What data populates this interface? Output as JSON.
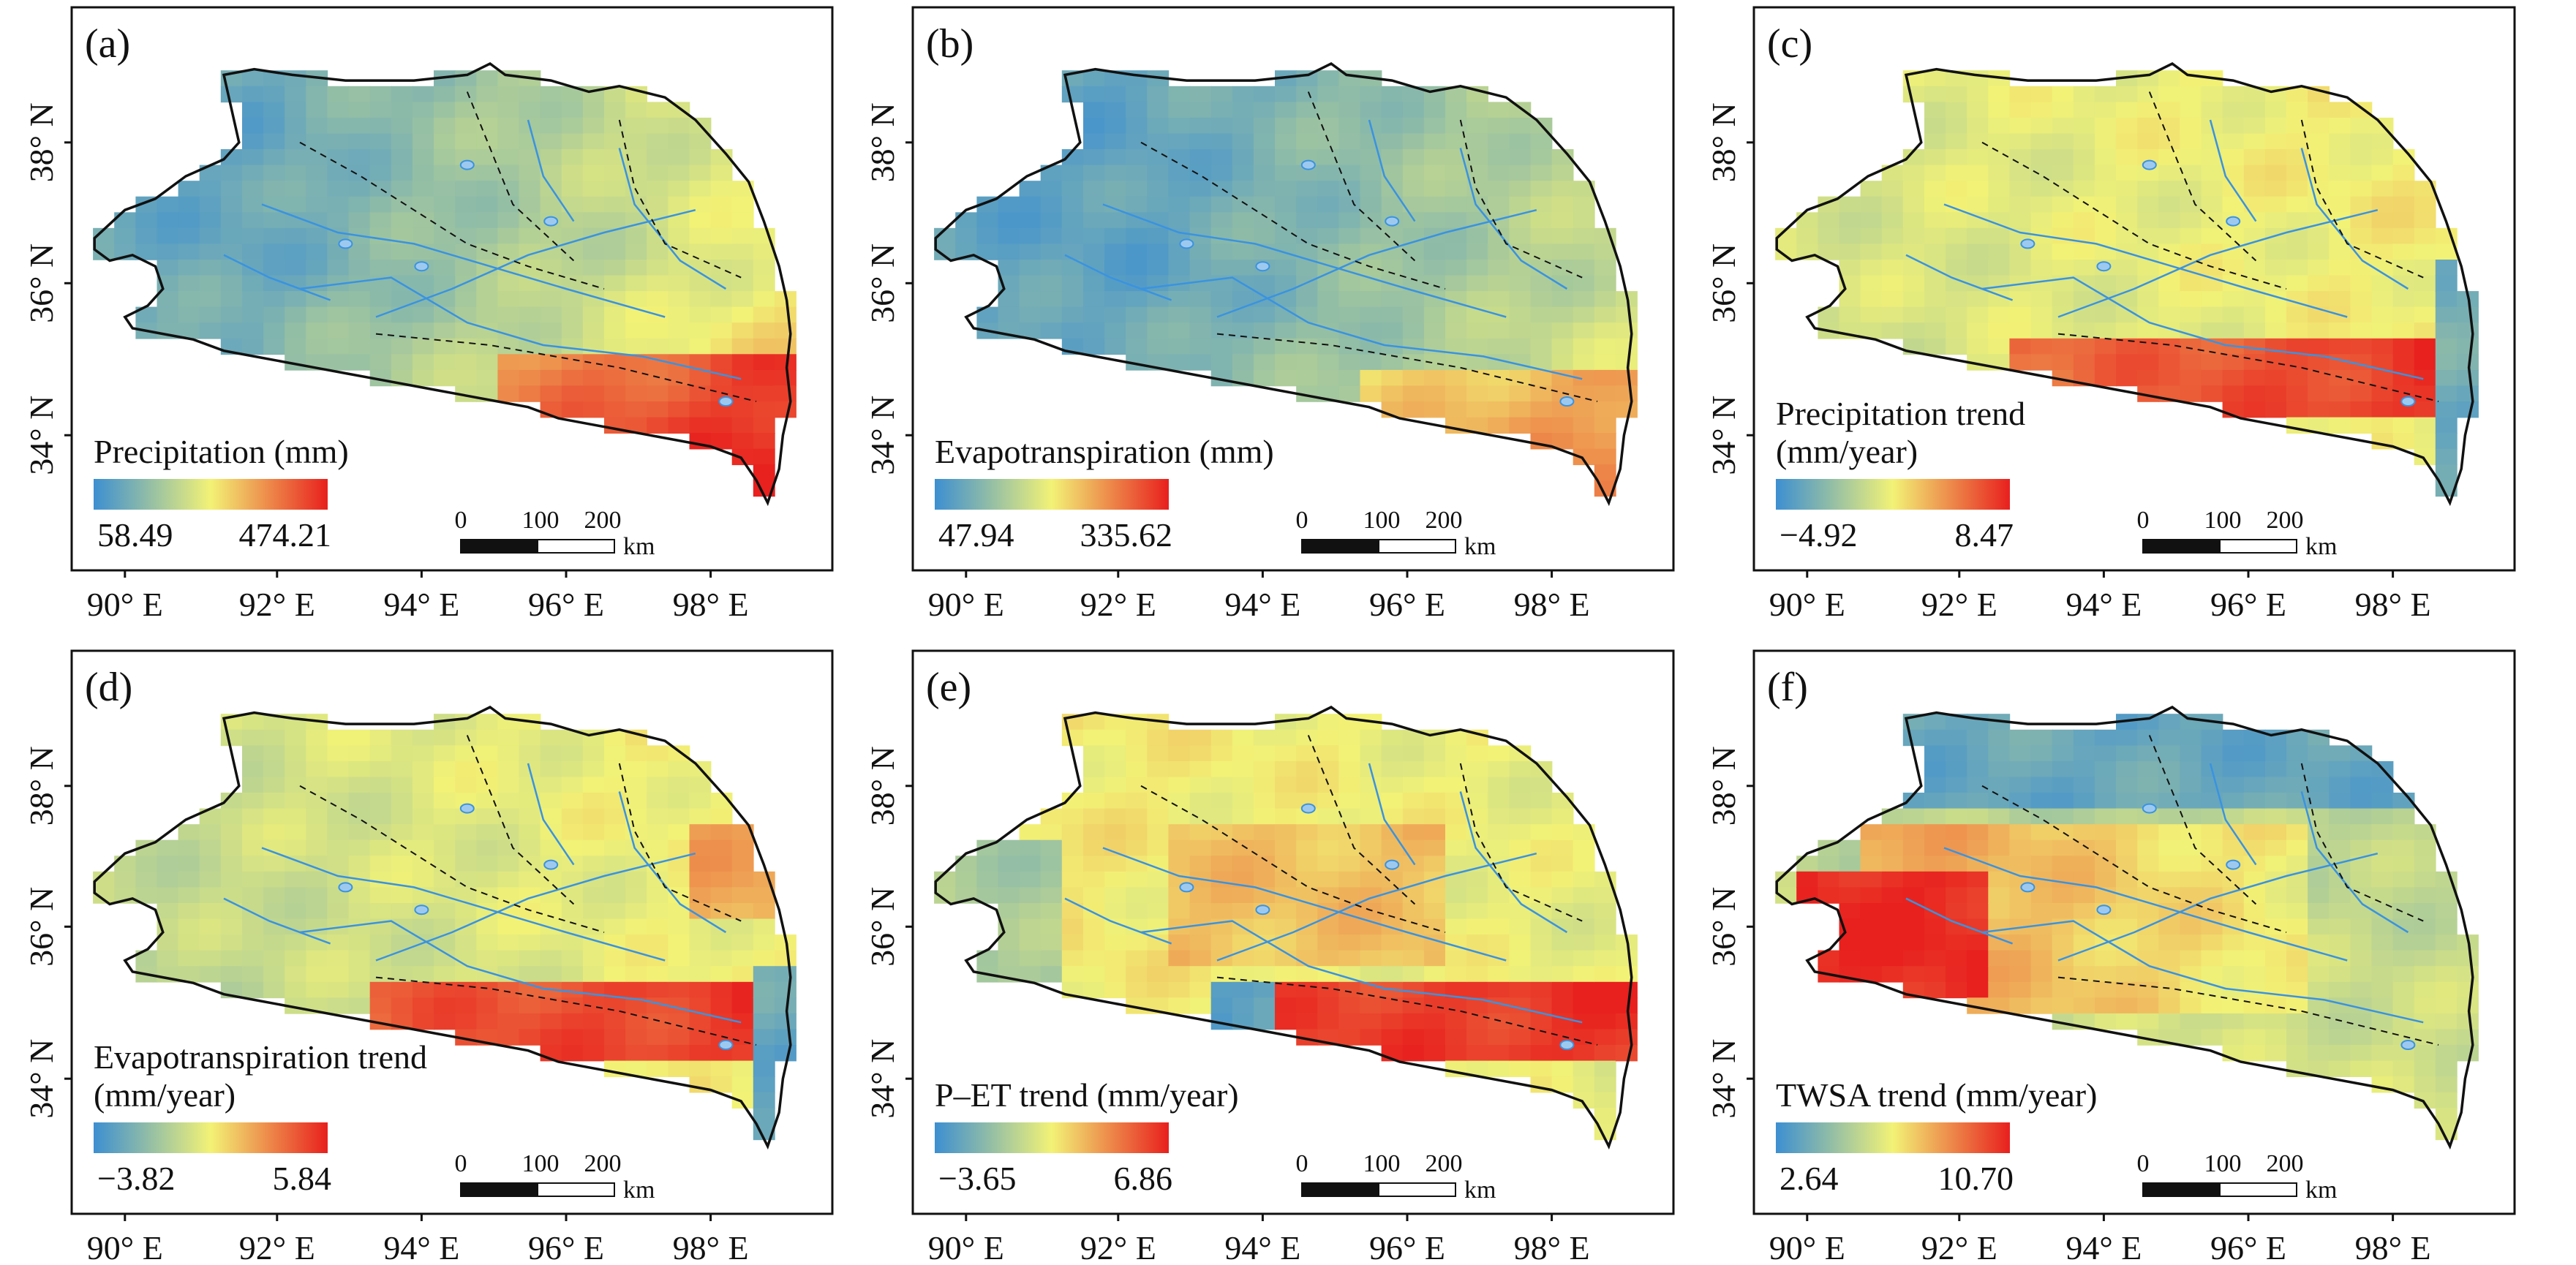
{
  "figure": {
    "x_ticks": [
      "90° E",
      "92° E",
      "94° E",
      "96° E",
      "98° E"
    ],
    "y_ticks": [
      "38° N",
      "36° N",
      "34° N"
    ],
    "scale_bar": {
      "labels": [
        "0",
        "100",
        "200"
      ],
      "unit": "km"
    },
    "panels": [
      {
        "label": "(a)",
        "legend_title": [
          "Precipitation (mm)"
        ],
        "min": "58.49",
        "max": "474.21",
        "pattern": "precip"
      },
      {
        "label": "(b)",
        "legend_title": [
          "Evapotranspiration (mm)"
        ],
        "min": "47.94",
        "max": "335.62",
        "pattern": "et"
      },
      {
        "label": "(c)",
        "legend_title": [
          "Precipitation trend",
          "(mm/year)"
        ],
        "min": "−4.92",
        "max": "8.47",
        "pattern": "ptrend"
      },
      {
        "label": "(d)",
        "legend_title": [
          "Evapotranspiration trend",
          "(mm/year)"
        ],
        "min": "−3.82",
        "max": "5.84",
        "pattern": "ettrend"
      },
      {
        "label": "(e)",
        "legend_title": [
          "P–ET trend (mm/year)"
        ],
        "min": "−3.65",
        "max": "6.86",
        "pattern": "petrend"
      },
      {
        "label": "(f)",
        "legend_title": [
          "TWSA trend (mm/year)"
        ],
        "min": "2.64",
        "max": "10.70",
        "pattern": "twsa"
      }
    ]
  },
  "colors": {
    "low": "#3d8fd1",
    "mid": "#f2f276",
    "high": "#e8201e",
    "rivers": "#3a93e0",
    "boundary": "#111111"
  }
}
